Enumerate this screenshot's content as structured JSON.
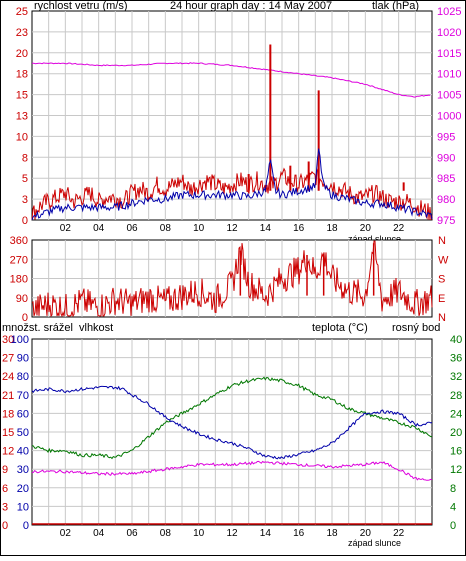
{
  "colors": {
    "speed": "#cc0000",
    "speed_avg": "#0000aa",
    "pressure": "#dd00dd",
    "direction": "#cc0000",
    "humidity": "#0000aa",
    "temperature": "#007700",
    "dewpoint": "#dd00dd",
    "rain": "#cc0000",
    "grid": "#c8c8c8",
    "frame": "#000000",
    "text": "#000000"
  },
  "panel1": {
    "left_label": "rychlost vetru (m/s)",
    "title": "24 hour graph day : 14 May 2007",
    "right_label": "tlak (hPa)",
    "left_ticks": [
      "0",
      "3",
      "5",
      "8",
      "10",
      "13",
      "15",
      "18",
      "20",
      "23",
      "25"
    ],
    "right_ticks": [
      "975",
      "980",
      "985",
      "990",
      "995",
      "1000",
      "1005",
      "1010",
      "1015",
      "1020",
      "1025"
    ],
    "x_ticks": [
      "02",
      "04",
      "06",
      "08",
      "10",
      "12",
      "14",
      "16",
      "18",
      "20",
      "22"
    ],
    "sunset_label": "západ slunce"
  },
  "panel2": {
    "left_ticks": [
      "0",
      "90",
      "180",
      "270",
      "360"
    ],
    "right_ticks": [
      "N",
      "E",
      "S",
      "W",
      "N"
    ]
  },
  "panel3": {
    "rain_label": "množst. srážel",
    "humidity_label": "vlhkost",
    "temp_label": "teplota (°C)",
    "dew_label": "rosný bod",
    "rain_ticks": [
      "0",
      "3",
      "6",
      "9",
      "12",
      "15",
      "18",
      "21",
      "24",
      "27",
      "30"
    ],
    "hum_ticks": [
      "0",
      "10",
      "20",
      "30",
      "40",
      "50",
      "60",
      "70",
      "80",
      "90",
      "100"
    ],
    "right_ticks": [
      "0",
      "4",
      "8",
      "12",
      "16",
      "20",
      "24",
      "28",
      "32",
      "36",
      "40"
    ],
    "x_ticks": [
      "02",
      "04",
      "06",
      "08",
      "10",
      "12",
      "14",
      "16",
      "18",
      "20",
      "22"
    ],
    "sunset_label": "západ slunce"
  },
  "chart_data": [
    {
      "type": "line",
      "title": "24 hour graph day : 14 May 2007",
      "xlabel": "",
      "x_range_hours": [
        0,
        24
      ],
      "y_left": {
        "label": "rychlost vetru (m/s)",
        "range": [
          0,
          25
        ]
      },
      "y_right": {
        "label": "tlak (hPa)",
        "range": [
          975,
          1025
        ]
      },
      "series": [
        {
          "name": "",
          "axis": "left",
          "style": "gust_red",
          "points": [
            [
              0,
              0.5
            ],
            [
              0.5,
              1.5
            ],
            [
              1,
              2
            ],
            [
              1.5,
              2.5
            ],
            [
              2,
              3
            ],
            [
              2.5,
              2
            ],
            [
              3,
              2.5
            ],
            [
              3.5,
              3
            ],
            [
              4,
              2
            ],
            [
              4.5,
              2.5
            ],
            [
              5,
              2.5
            ],
            [
              5.5,
              2
            ],
            [
              6,
              3
            ],
            [
              6.5,
              3.5
            ],
            [
              7,
              3
            ],
            [
              7.5,
              4
            ],
            [
              8,
              3.5
            ],
            [
              8.5,
              4
            ],
            [
              9,
              4.5
            ],
            [
              9.5,
              3.5
            ],
            [
              10,
              4
            ],
            [
              10.5,
              4.5
            ],
            [
              11,
              4
            ],
            [
              11.5,
              3.5
            ],
            [
              12,
              4
            ],
            [
              12.5,
              4.5
            ],
            [
              13,
              4
            ],
            [
              13.5,
              4.5
            ],
            [
              14,
              4
            ],
            [
              14.5,
              4
            ],
            [
              15,
              5
            ],
            [
              15.5,
              4.5
            ],
            [
              16,
              4
            ],
            [
              16.5,
              4.5
            ],
            [
              17,
              5
            ],
            [
              17.5,
              4.5
            ],
            [
              18,
              4
            ],
            [
              18.5,
              3.5
            ],
            [
              19,
              3
            ],
            [
              19.5,
              2.5
            ],
            [
              20,
              2.5
            ],
            [
              20.5,
              3
            ],
            [
              21,
              2.5
            ],
            [
              21.5,
              2
            ],
            [
              22,
              2
            ],
            [
              22.5,
              2
            ],
            [
              23,
              1.5
            ],
            [
              23.5,
              1
            ],
            [
              24,
              0.5
            ]
          ],
          "spikes": [
            [
              14.3,
              21
            ],
            [
              17.2,
              15.5
            ],
            [
              16.6,
              7
            ],
            [
              15.5,
              6.5
            ],
            [
              13.0,
              5.5
            ],
            [
              22.3,
              4.5
            ]
          ]
        },
        {
          "name": "",
          "axis": "left",
          "style": "avg_blue",
          "points": [
            [
              0,
              0.3
            ],
            [
              1,
              1
            ],
            [
              2,
              1.5
            ],
            [
              3,
              1.5
            ],
            [
              4,
              1.5
            ],
            [
              5,
              1.5
            ],
            [
              6,
              2
            ],
            [
              7,
              2.5
            ],
            [
              8,
              2.5
            ],
            [
              9,
              3
            ],
            [
              10,
              3
            ],
            [
              11,
              3
            ],
            [
              12,
              3
            ],
            [
              13,
              2.8
            ],
            [
              14,
              3.5
            ],
            [
              14.3,
              7
            ],
            [
              14.6,
              3.5
            ],
            [
              15,
              3
            ],
            [
              16,
              3.5
            ],
            [
              17,
              4
            ],
            [
              17.2,
              8.5
            ],
            [
              17.5,
              4
            ],
            [
              18,
              3
            ],
            [
              19,
              2.5
            ],
            [
              20,
              2
            ],
            [
              21,
              2
            ],
            [
              22,
              1.5
            ],
            [
              23,
              1
            ],
            [
              24,
              0.5
            ]
          ]
        },
        {
          "name": "",
          "axis": "right",
          "style": "pressure",
          "points": [
            [
              0,
              1012.5
            ],
            [
              2,
              1012.5
            ],
            [
              4,
              1012
            ],
            [
              6,
              1012
            ],
            [
              8,
              1012.5
            ],
            [
              10,
              1012.5
            ],
            [
              12,
              1012
            ],
            [
              14,
              1011
            ],
            [
              16,
              1010
            ],
            [
              18,
              1009
            ],
            [
              20,
              1007.5
            ],
            [
              22,
              1005
            ],
            [
              23,
              1004.5
            ],
            [
              24,
              1005
            ]
          ]
        }
      ]
    },
    {
      "type": "scatter",
      "title": "",
      "x_range_hours": [
        0,
        24
      ],
      "y_left": {
        "label": "",
        "range": [
          0,
          360
        ]
      },
      "series": [
        {
          "name": "",
          "style": "direction",
          "points": [
            [
              0,
              30
            ],
            [
              1,
              60
            ],
            [
              2,
              40
            ],
            [
              3,
              70
            ],
            [
              4,
              45
            ],
            [
              5,
              80
            ],
            [
              6,
              60
            ],
            [
              7,
              90
            ],
            [
              8,
              70
            ],
            [
              9,
              100
            ],
            [
              10,
              120
            ],
            [
              11,
              80
            ],
            [
              12,
              150
            ],
            [
              12.5,
              310
            ],
            [
              13,
              160
            ],
            [
              14,
              100
            ],
            [
              15,
              180
            ],
            [
              16,
              220
            ],
            [
              16.5,
              280
            ],
            [
              17,
              200
            ],
            [
              17.5,
              290
            ],
            [
              18,
              180
            ],
            [
              19,
              120
            ],
            [
              20,
              100
            ],
            [
              20.5,
              340
            ],
            [
              21,
              80
            ],
            [
              22,
              120
            ],
            [
              23,
              60
            ],
            [
              24,
              90
            ]
          ]
        }
      ]
    },
    {
      "type": "line",
      "title": "",
      "x_range_hours": [
        0,
        24
      ],
      "y_left_rain": {
        "label": "množst. srážel",
        "range": [
          0,
          30
        ]
      },
      "y_left_humidity": {
        "label": "vlhkost",
        "range": [
          0,
          100
        ]
      },
      "y_right": {
        "label": "teplota (°C) / rosný bod",
        "range": [
          0,
          40
        ]
      },
      "series": [
        {
          "name": "vlhkost",
          "axis": "left_humidity",
          "points": [
            [
              0,
              72
            ],
            [
              1,
              73
            ],
            [
              2,
              72
            ],
            [
              3,
              73
            ],
            [
              4,
              74
            ],
            [
              5,
              74
            ],
            [
              5.5,
              73
            ],
            [
              6,
              70
            ],
            [
              7,
              65
            ],
            [
              8,
              58
            ],
            [
              9,
              53
            ],
            [
              10,
              49
            ],
            [
              11,
              46
            ],
            [
              12,
              44
            ],
            [
              13,
              41
            ],
            [
              14,
              37
            ],
            [
              15,
              36
            ],
            [
              16,
              38
            ],
            [
              17,
              40
            ],
            [
              18,
              44
            ],
            [
              19,
              52
            ],
            [
              20,
              60
            ],
            [
              21,
              61
            ],
            [
              22,
              60
            ],
            [
              23,
              54
            ],
            [
              23.5,
              54
            ],
            [
              24,
              55
            ]
          ]
        },
        {
          "name": "teplota (°C)",
          "axis": "right",
          "points": [
            [
              0,
              17
            ],
            [
              1,
              16
            ],
            [
              2,
              16
            ],
            [
              3,
              15
            ],
            [
              4,
              15
            ],
            [
              5,
              14.5
            ],
            [
              6,
              16
            ],
            [
              7,
              19
            ],
            [
              8,
              22
            ],
            [
              9,
              24
            ],
            [
              10,
              26
            ],
            [
              11,
              28
            ],
            [
              12,
              30
            ],
            [
              13,
              31
            ],
            [
              14,
              31.5
            ],
            [
              15,
              31
            ],
            [
              16,
              30
            ],
            [
              17,
              28
            ],
            [
              18,
              27
            ],
            [
              19,
              25
            ],
            [
              20,
              24
            ],
            [
              21,
              23
            ],
            [
              22,
              22
            ],
            [
              23,
              21
            ],
            [
              24,
              19
            ]
          ]
        },
        {
          "name": "rosný bod",
          "axis": "right",
          "points": [
            [
              0,
              11.5
            ],
            [
              2,
              11.5
            ],
            [
              4,
              11
            ],
            [
              6,
              11
            ],
            [
              8,
              12
            ],
            [
              10,
              13
            ],
            [
              12,
              13
            ],
            [
              14,
              13.5
            ],
            [
              16,
              13
            ],
            [
              18,
              12.5
            ],
            [
              20,
              13
            ],
            [
              21,
              13.5
            ],
            [
              22,
              12
            ],
            [
              23,
              10
            ],
            [
              24,
              9.5
            ]
          ]
        },
        {
          "name": "množst. srážel",
          "axis": "left_rain",
          "points": [
            [
              0,
              0
            ],
            [
              24,
              0
            ]
          ]
        }
      ]
    }
  ]
}
